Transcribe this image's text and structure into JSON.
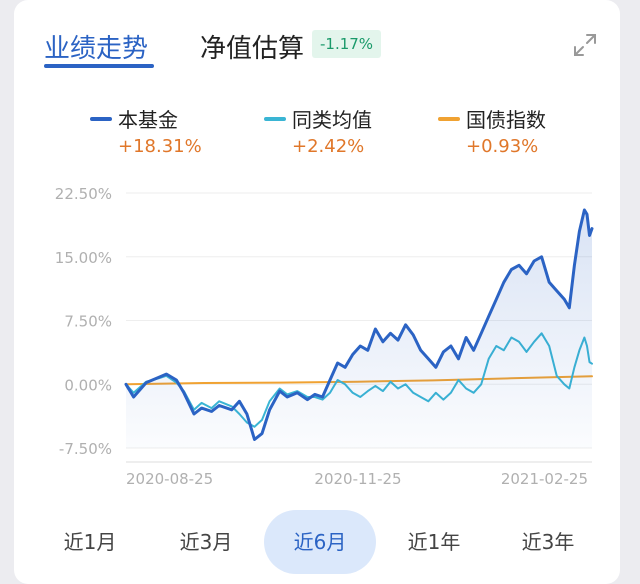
{
  "tabs": {
    "performance": "业绩走势",
    "estimate": "净值估算",
    "estimate_badge": "-1.17%"
  },
  "icons": {
    "expand": "expand-icon"
  },
  "legend": [
    {
      "name": "本基金",
      "value": "+18.31%",
      "color": "#2b63c4"
    },
    {
      "name": "同类均值",
      "value": "+2.42%",
      "color": "#3ab5d4"
    },
    {
      "name": "国债指数",
      "value": "+0.93%",
      "color": "#f0a232"
    }
  ],
  "chart_data": {
    "type": "line",
    "yticks": [
      "22.50%",
      "15.00%",
      "7.50%",
      "0.00%",
      "-7.50%"
    ],
    "ytick_values": [
      22.5,
      15,
      7.5,
      0,
      -7.5
    ],
    "xticks": [
      "2020-08-25",
      "2020-11-25",
      "2021-02-25"
    ],
    "ylim": [
      -7.5,
      22.5
    ],
    "x_range": [
      "2020-08-25",
      "2021-02-26"
    ],
    "series": [
      {
        "name": "本基金",
        "color": "#2b63c4",
        "fill": true,
        "points": [
          [
            "2020-08-25",
            0.0
          ],
          [
            "2020-08-28",
            -1.5
          ],
          [
            "2020-09-02",
            0.2
          ],
          [
            "2020-09-07",
            0.8
          ],
          [
            "2020-09-10",
            1.2
          ],
          [
            "2020-09-14",
            0.5
          ],
          [
            "2020-09-17",
            -1.0
          ],
          [
            "2020-09-21",
            -3.5
          ],
          [
            "2020-09-24",
            -2.8
          ],
          [
            "2020-09-28",
            -3.2
          ],
          [
            "2020-10-01",
            -2.5
          ],
          [
            "2020-10-06",
            -3.0
          ],
          [
            "2020-10-09",
            -2.0
          ],
          [
            "2020-10-12",
            -3.5
          ],
          [
            "2020-10-15",
            -6.5
          ],
          [
            "2020-10-18",
            -5.8
          ],
          [
            "2020-10-21",
            -3.0
          ],
          [
            "2020-10-25",
            -0.8
          ],
          [
            "2020-10-28",
            -1.5
          ],
          [
            "2020-11-01",
            -1.0
          ],
          [
            "2020-11-05",
            -1.8
          ],
          [
            "2020-11-08",
            -1.2
          ],
          [
            "2020-11-11",
            -1.5
          ],
          [
            "2020-11-14",
            0.5
          ],
          [
            "2020-11-17",
            2.5
          ],
          [
            "2020-11-20",
            2.0
          ],
          [
            "2020-11-23",
            3.5
          ],
          [
            "2020-11-26",
            4.5
          ],
          [
            "2020-11-29",
            4.0
          ],
          [
            "2020-12-02",
            6.5
          ],
          [
            "2020-12-05",
            5.0
          ],
          [
            "2020-12-08",
            6.0
          ],
          [
            "2020-12-11",
            5.2
          ],
          [
            "2020-12-14",
            7.0
          ],
          [
            "2020-12-17",
            5.8
          ],
          [
            "2020-12-20",
            4.0
          ],
          [
            "2020-12-23",
            3.0
          ],
          [
            "2020-12-26",
            2.0
          ],
          [
            "2020-12-29",
            3.8
          ],
          [
            "2021-01-01",
            4.5
          ],
          [
            "2021-01-04",
            3.0
          ],
          [
            "2021-01-07",
            5.5
          ],
          [
            "2021-01-10",
            4.0
          ],
          [
            "2021-01-13",
            6.0
          ],
          [
            "2021-01-16",
            8.0
          ],
          [
            "2021-01-19",
            10.0
          ],
          [
            "2021-01-22",
            12.0
          ],
          [
            "2021-01-25",
            13.5
          ],
          [
            "2021-01-28",
            14.0
          ],
          [
            "2021-01-31",
            13.0
          ],
          [
            "2021-02-03",
            14.5
          ],
          [
            "2021-02-06",
            15.0
          ],
          [
            "2021-02-09",
            12.0
          ],
          [
            "2021-02-12",
            11.0
          ],
          [
            "2021-02-15",
            10.0
          ],
          [
            "2021-02-17",
            9.0
          ],
          [
            "2021-02-19",
            14.0
          ],
          [
            "2021-02-21",
            18.0
          ],
          [
            "2021-02-23",
            20.5
          ],
          [
            "2021-02-24",
            20.0
          ],
          [
            "2021-02-25",
            17.5
          ],
          [
            "2021-02-26",
            18.31
          ]
        ]
      },
      {
        "name": "同类均值",
        "color": "#3ab5d4",
        "fill": false,
        "points": [
          [
            "2020-08-25",
            0.0
          ],
          [
            "2020-08-28",
            -1.0
          ],
          [
            "2020-09-02",
            0.3
          ],
          [
            "2020-09-07",
            0.7
          ],
          [
            "2020-09-10",
            1.0
          ],
          [
            "2020-09-14",
            0.2
          ],
          [
            "2020-09-17",
            -0.8
          ],
          [
            "2020-09-21",
            -3.0
          ],
          [
            "2020-09-24",
            -2.2
          ],
          [
            "2020-09-28",
            -2.8
          ],
          [
            "2020-10-01",
            -2.0
          ],
          [
            "2020-10-06",
            -2.6
          ],
          [
            "2020-10-09",
            -3.5
          ],
          [
            "2020-10-12",
            -4.5
          ],
          [
            "2020-10-15",
            -5.0
          ],
          [
            "2020-10-18",
            -4.2
          ],
          [
            "2020-10-21",
            -2.0
          ],
          [
            "2020-10-25",
            -0.5
          ],
          [
            "2020-10-28",
            -1.2
          ],
          [
            "2020-11-01",
            -0.8
          ],
          [
            "2020-11-05",
            -1.5
          ],
          [
            "2020-11-08",
            -1.5
          ],
          [
            "2020-11-11",
            -1.8
          ],
          [
            "2020-11-14",
            -1.0
          ],
          [
            "2020-11-17",
            0.5
          ],
          [
            "2020-11-20",
            0.0
          ],
          [
            "2020-11-23",
            -1.0
          ],
          [
            "2020-11-26",
            -1.5
          ],
          [
            "2020-11-29",
            -0.8
          ],
          [
            "2020-12-02",
            -0.2
          ],
          [
            "2020-12-05",
            -0.8
          ],
          [
            "2020-12-08",
            0.3
          ],
          [
            "2020-12-11",
            -0.5
          ],
          [
            "2020-12-14",
            0.0
          ],
          [
            "2020-12-17",
            -1.0
          ],
          [
            "2020-12-20",
            -1.5
          ],
          [
            "2020-12-23",
            -2.0
          ],
          [
            "2020-12-26",
            -1.0
          ],
          [
            "2020-12-29",
            -1.8
          ],
          [
            "2021-01-01",
            -1.0
          ],
          [
            "2021-01-04",
            0.5
          ],
          [
            "2021-01-07",
            -0.5
          ],
          [
            "2021-01-10",
            -1.0
          ],
          [
            "2021-01-13",
            0.0
          ],
          [
            "2021-01-16",
            3.0
          ],
          [
            "2021-01-19",
            4.5
          ],
          [
            "2021-01-22",
            4.0
          ],
          [
            "2021-01-25",
            5.5
          ],
          [
            "2021-01-28",
            5.0
          ],
          [
            "2021-01-31",
            3.8
          ],
          [
            "2021-02-03",
            5.0
          ],
          [
            "2021-02-06",
            6.0
          ],
          [
            "2021-02-09",
            4.5
          ],
          [
            "2021-02-12",
            1.0
          ],
          [
            "2021-02-15",
            0.0
          ],
          [
            "2021-02-17",
            -0.5
          ],
          [
            "2021-02-19",
            2.0
          ],
          [
            "2021-02-21",
            4.0
          ],
          [
            "2021-02-23",
            5.5
          ],
          [
            "2021-02-24",
            4.5
          ],
          [
            "2021-02-25",
            2.6
          ],
          [
            "2021-02-26",
            2.42
          ]
        ]
      },
      {
        "name": "国债指数",
        "color": "#f0a232",
        "fill": false,
        "points": [
          [
            "2020-08-25",
            0.0
          ],
          [
            "2020-09-25",
            0.15
          ],
          [
            "2020-10-25",
            0.2
          ],
          [
            "2020-11-25",
            0.3
          ],
          [
            "2020-12-25",
            0.45
          ],
          [
            "2021-01-25",
            0.7
          ],
          [
            "2021-02-26",
            0.93
          ]
        ]
      }
    ]
  },
  "ranges": [
    "近1月",
    "近3月",
    "近6月",
    "近1年",
    "近3年"
  ],
  "active_range": "近6月"
}
